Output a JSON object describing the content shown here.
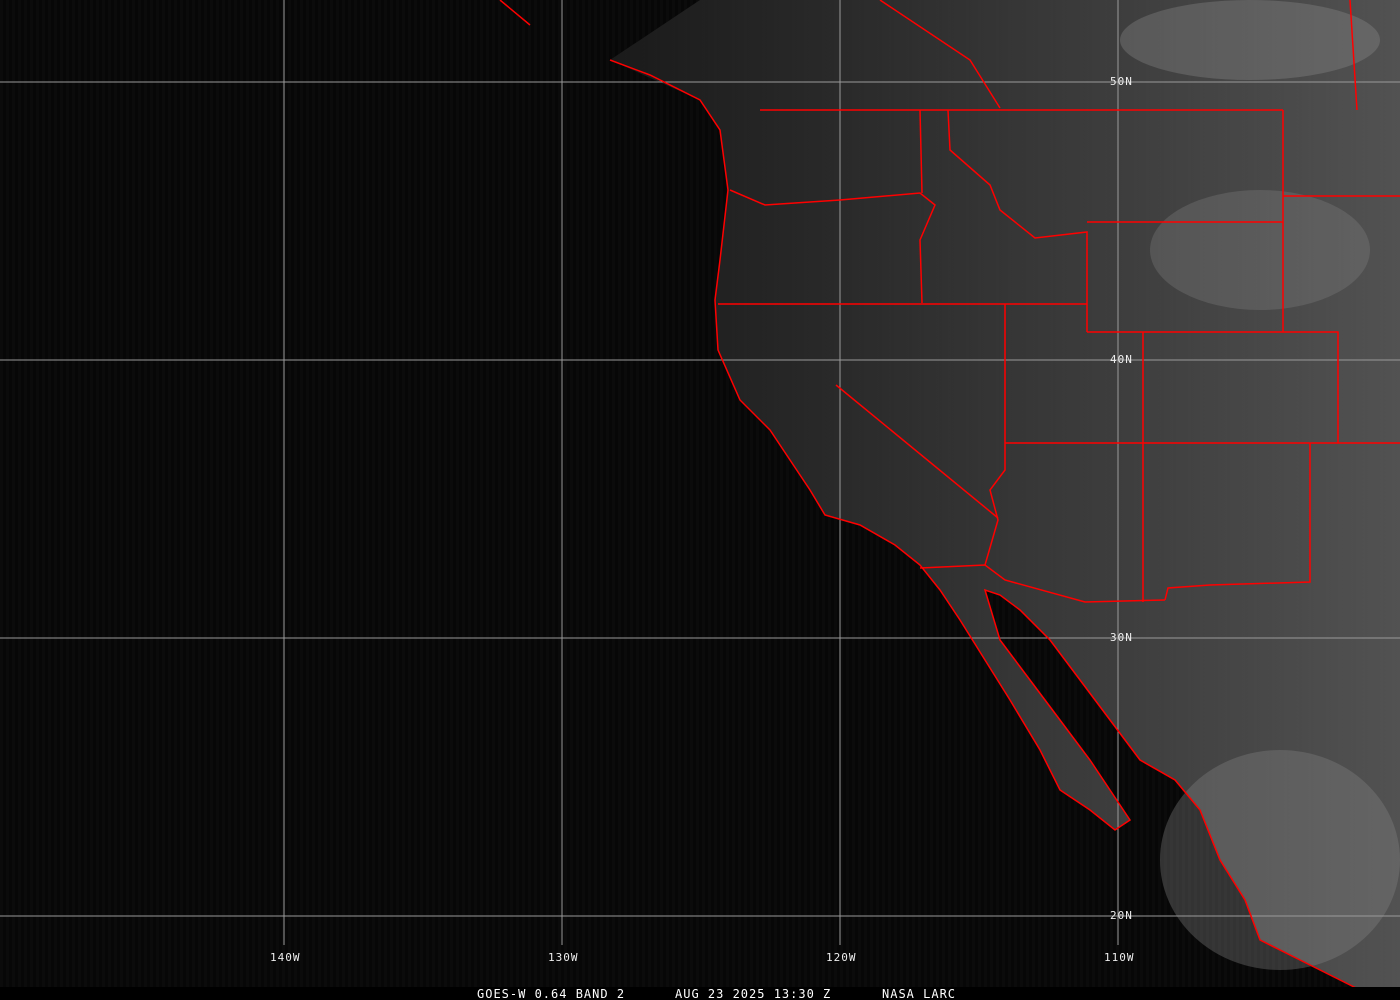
{
  "map": {
    "caption": {
      "satellite": "GOES-W 0.64 BAND 2",
      "datetime": "AUG 23 2025 13:30 Z",
      "agency": "NASA LARC"
    },
    "lon_labels": [
      "140W",
      "130W",
      "120W",
      "110W"
    ],
    "lat_labels": [
      "50N",
      "40N",
      "30N",
      "20N"
    ],
    "colors": {
      "borders": "#ff0000",
      "grid": "#9a9a9a",
      "ocean": "#070707"
    }
  }
}
